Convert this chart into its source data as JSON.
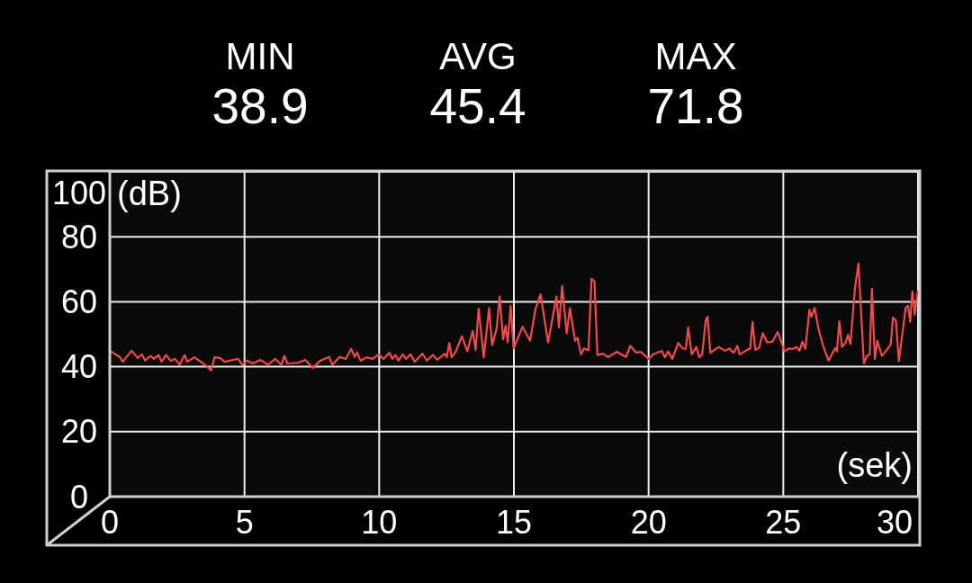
{
  "chart_data": {
    "type": "line",
    "xlabel": "(sek)",
    "ylabel": "(dB)",
    "annotations": [
      "MIN",
      "38.9",
      "AVG",
      "45.4",
      "MAX",
      "71.8"
    ],
    "x": [
      0,
      0.37,
      0.48,
      0.81,
      1.03,
      1.2,
      1.31,
      1.51,
      1.64,
      1.81,
      1.92,
      2.09,
      2.26,
      2.42,
      2.59,
      2.78,
      2.87,
      3.14,
      3.31,
      3.53,
      3.76,
      3.89,
      4.09,
      4.26,
      4.76,
      4.92,
      5.09,
      5.31,
      5.59,
      5.87,
      6.14,
      6.37,
      6.48,
      6.59,
      6.98,
      7.26,
      7.53,
      7.81,
      8.14,
      8.26,
      8.53,
      8.76,
      8.96,
      9.09,
      9.18,
      9.31,
      9.53,
      9.76,
      9.98,
      10.16,
      10.38,
      10.49,
      10.6,
      10.71,
      10.88,
      10.99,
      11.16,
      11.32,
      11.6,
      11.77,
      11.99,
      12.16,
      12.43,
      12.51,
      12.6,
      12.69,
      12.84,
      13.07,
      13.27,
      13.47,
      13.58,
      13.69,
      13.88,
      14.08,
      14.19,
      14.36,
      14.47,
      14.6,
      14.69,
      14.77,
      14.88,
      14.99,
      15.32,
      15.6,
      15.8,
      15.99,
      16.27,
      16.58,
      16.67,
      16.79,
      16.96,
      17.08,
      17.27,
      17.36,
      17.49,
      17.6,
      17.77,
      17.88,
      17.99,
      18.1,
      18.32,
      18.49,
      18.82,
      19.16,
      19.32,
      19.54,
      19.71,
      20,
      20.16,
      20.32,
      20.49,
      20.6,
      20.73,
      20.88,
      21.1,
      21.27,
      21.38,
      21.47,
      21.6,
      21.77,
      21.88,
      21.99,
      22.12,
      22.19,
      22.29,
      22.6,
      22.84,
      22.99,
      23.16,
      23.29,
      23.38,
      23.66,
      23.77,
      23.86,
      23.96,
      24.1,
      24.24,
      24.4,
      24.6,
      24.79,
      24.93,
      25.04,
      25.21,
      25.38,
      25.49,
      25.6,
      25.71,
      25.82,
      25.97,
      26.04,
      26.16,
      26.32,
      26.49,
      26.68,
      26.93,
      26.99,
      27.08,
      27.18,
      27.32,
      27.4,
      27.49,
      27.66,
      27.79,
      27.99,
      28.1,
      28.21,
      28.29,
      28.4,
      28.49,
      28.66,
      28.88,
      28.99,
      29.07,
      29.18,
      29.29,
      29.43,
      29.54,
      29.63,
      29.71,
      29.79,
      29.88,
      29.99
    ],
    "series": [
      {
        "color": "#f24a4a",
        "values": [
          44.9,
          43.0,
          41.5,
          44.9,
          42.7,
          43.8,
          41.9,
          43.3,
          42.4,
          43.6,
          41.5,
          43.6,
          41.8,
          42.4,
          40.6,
          43.6,
          41.5,
          42.9,
          41.9,
          40.6,
          38.9,
          42.9,
          42.7,
          41.5,
          42.4,
          40.6,
          41.9,
          41.0,
          42.1,
          40.6,
          42.4,
          40.6,
          43.3,
          41.0,
          41.2,
          42.1,
          39.6,
          41.8,
          43.0,
          40.6,
          43.0,
          42.4,
          45.5,
          43.0,
          44.4,
          41.8,
          42.9,
          42.4,
          43.8,
          42.4,
          44.3,
          42.4,
          43.6,
          41.9,
          43.8,
          42.4,
          43.8,
          41.5,
          44.0,
          41.9,
          43.6,
          42.1,
          44.0,
          42.9,
          47.3,
          42.9,
          44.6,
          49.4,
          44.8,
          51.0,
          45.1,
          57.9,
          42.9,
          58.1,
          46.6,
          51.7,
          61.6,
          48.4,
          52.6,
          47.5,
          58.8,
          45.6,
          52.3,
          48.0,
          57.7,
          62.3,
          47.5,
          61.6,
          52.1,
          64.9,
          50.3,
          58.1,
          48.0,
          48.9,
          43.8,
          45.6,
          45.1,
          67.1,
          66.2,
          43.6,
          44.0,
          42.9,
          44.6,
          43.0,
          46.4,
          44.3,
          44.6,
          42.4,
          43.8,
          44.3,
          44.9,
          42.9,
          44.7,
          42.4,
          47.3,
          45.6,
          45.5,
          52.1,
          43.8,
          46.1,
          42.9,
          43.8,
          54.2,
          55.4,
          44.3,
          46.1,
          44.9,
          45.6,
          44.3,
          46.4,
          43.8,
          45.2,
          45.6,
          53.8,
          45.2,
          45.8,
          50.3,
          47.5,
          47.7,
          50.7,
          47.5,
          44.7,
          45.6,
          45.5,
          46.1,
          44.9,
          47.7,
          45.5,
          57.5,
          55.4,
          58.1,
          51.2,
          46.1,
          41.9,
          45.8,
          44.7,
          54.0,
          46.1,
          47.5,
          49.8,
          47.0,
          64.2,
          71.8,
          41.0,
          43.3,
          43.8,
          64.0,
          42.4,
          48.0,
          43.3,
          45.6,
          47.0,
          55.1,
          54.2,
          41.8,
          50.7,
          58.1,
          58.8,
          53.8,
          63.2,
          56.0,
          63.2
        ]
      }
    ],
    "xlim": [
      0,
      30
    ],
    "ylim": [
      0,
      100
    ],
    "xticks": [
      0,
      5,
      10,
      15,
      20,
      25,
      30
    ],
    "yticks": [
      0,
      20,
      40,
      60,
      80,
      100
    ],
    "grid": true
  }
}
